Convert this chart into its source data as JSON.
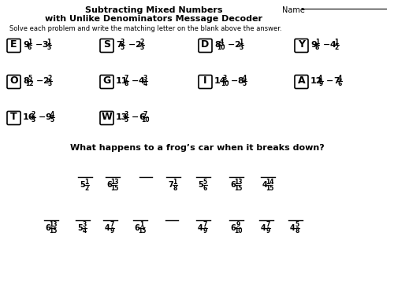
{
  "title_line1": "Subtracting Mixed Numbers",
  "title_line2": "with Unlike Denominators Message Decoder",
  "instruction": "Solve each problem and write the matching letter on the blank above the answer.",
  "row1_problems": [
    {
      "letter": "E",
      "w1": "9",
      "n1": "1",
      "d1": "6",
      "w2": "3",
      "n2": "1",
      "d2": "3"
    },
    {
      "letter": "S",
      "w1": "7",
      "n1": "3",
      "d1": "5",
      "w2": "2",
      "n2": "2",
      "d2": "3"
    },
    {
      "letter": "D",
      "w1": "8",
      "n1": "4",
      "d1": "10",
      "w2": "2",
      "n2": "1",
      "d2": "3"
    },
    {
      "letter": "Y",
      "w1": "9",
      "n1": "1",
      "d1": "8",
      "w2": "4",
      "n2": "1",
      "d2": "2"
    }
  ],
  "row2_problems": [
    {
      "letter": "O",
      "w1": "8",
      "n1": "5",
      "d1": "12",
      "w2": "2",
      "n2": "2",
      "d2": "3"
    },
    {
      "letter": "G",
      "w1": "11",
      "n1": "7",
      "d1": "8",
      "w2": "4",
      "n2": "3",
      "d2": "4"
    },
    {
      "letter": "I",
      "w1": "14",
      "n1": "3",
      "d1": "10",
      "w2": "8",
      "n2": "4",
      "d2": "5"
    },
    {
      "letter": "A",
      "w1": "12",
      "n1": "4",
      "d1": "9",
      "w2": "7",
      "n2": "4",
      "d2": "6"
    }
  ],
  "row3_problems": [
    {
      "letter": "T",
      "w1": "16",
      "n1": "2",
      "d1": "3",
      "w2": "9",
      "n2": "4",
      "d2": "5"
    },
    {
      "letter": "W",
      "w1": "13",
      "n1": "3",
      "d1": "5",
      "w2": "6",
      "n2": "7",
      "d2": "10"
    }
  ],
  "question": "What happens to a frog’s car when it breaks down?",
  "ans_row1": [
    {
      "whole": "5",
      "num": "1",
      "den": "2"
    },
    {
      "whole": "6",
      "num": "13",
      "den": "15"
    },
    {
      "whole": "",
      "num": "",
      "den": ""
    },
    {
      "whole": "7",
      "num": "1",
      "den": "8"
    },
    {
      "whole": "5",
      "num": "5",
      "den": "6"
    },
    {
      "whole": "6",
      "num": "13",
      "den": "15"
    },
    {
      "whole": "4",
      "num": "14",
      "den": "15"
    }
  ],
  "ans_row2": [
    {
      "whole": "6",
      "num": "13",
      "den": "15"
    },
    {
      "whole": "5",
      "num": "3",
      "den": "4"
    },
    {
      "whole": "4",
      "num": "7",
      "den": "9"
    },
    {
      "whole": "6",
      "num": "1",
      "den": "15"
    },
    {
      "whole": "",
      "num": "",
      "den": ""
    },
    {
      "whole": "4",
      "num": "7",
      "den": "9"
    },
    {
      "whole": "6",
      "num": "9",
      "den": "10"
    },
    {
      "whole": "4",
      "num": "7",
      "den": "9"
    },
    {
      "whole": "4",
      "num": "5",
      "den": "8"
    }
  ]
}
